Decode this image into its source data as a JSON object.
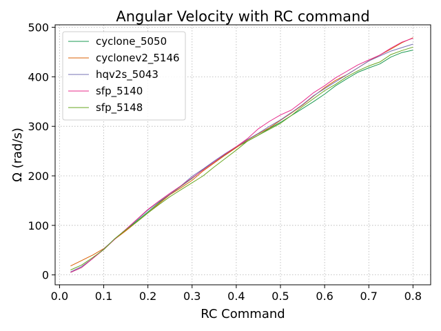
{
  "chart_data": {
    "type": "line",
    "title": "Angular Velocity with RC command",
    "xlabel": "RC Command",
    "ylabel": "Ω (rad/s)",
    "xlim": [
      -0.01,
      0.84
    ],
    "ylim": [
      -20,
      505
    ],
    "xticks": [
      0.0,
      0.1,
      0.2,
      0.3,
      0.4,
      0.5,
      0.6,
      0.7,
      0.8
    ],
    "xtick_labels": [
      "0.0",
      "0.1",
      "0.2",
      "0.3",
      "0.4",
      "0.5",
      "0.6",
      "0.7",
      "0.8"
    ],
    "yticks": [
      0,
      100,
      200,
      300,
      400,
      500
    ],
    "ytick_labels": [
      "0",
      "100",
      "200",
      "300",
      "400",
      "500"
    ],
    "grid": true,
    "legend_position": "top-left",
    "series": [
      {
        "name": "cyclone_5050",
        "color": "#1a9850",
        "x": [
          0.025,
          0.05,
          0.075,
          0.1,
          0.125,
          0.15,
          0.175,
          0.2,
          0.225,
          0.25,
          0.275,
          0.3,
          0.325,
          0.35,
          0.375,
          0.4,
          0.425,
          0.45,
          0.475,
          0.5,
          0.525,
          0.55,
          0.575,
          0.6,
          0.625,
          0.65,
          0.675,
          0.7,
          0.725,
          0.75,
          0.775,
          0.8
        ],
        "y": [
          5,
          15,
          33,
          52,
          73,
          91,
          109,
          127,
          146,
          163,
          179,
          195,
          213,
          228,
          243,
          258,
          270,
          282,
          296,
          308,
          322,
          336,
          350,
          365,
          382,
          396,
          409,
          418,
          426,
          440,
          449,
          454
        ]
      },
      {
        "name": "cyclonev2_5146",
        "color": "#d95f02",
        "x": [
          0.025,
          0.05,
          0.075,
          0.1,
          0.125,
          0.15,
          0.175,
          0.2,
          0.225,
          0.25,
          0.275,
          0.3,
          0.325,
          0.35,
          0.375,
          0.4,
          0.425,
          0.45,
          0.475,
          0.5,
          0.525,
          0.55,
          0.575,
          0.6,
          0.625,
          0.65,
          0.675,
          0.7,
          0.725,
          0.75,
          0.775,
          0.8
        ],
        "y": [
          18,
          29,
          40,
          53,
          72,
          89,
          107,
          125,
          144,
          162,
          176,
          191,
          210,
          226,
          242,
          257,
          272,
          285,
          297,
          312,
          327,
          343,
          361,
          378,
          393,
          404,
          418,
          432,
          444,
          456,
          469,
          479
        ]
      },
      {
        "name": "hqv2s_5043",
        "color": "#7570b3",
        "x": [
          0.025,
          0.05,
          0.075,
          0.1,
          0.125,
          0.15,
          0.175,
          0.2,
          0.225,
          0.25,
          0.275,
          0.3,
          0.325,
          0.35,
          0.375,
          0.4,
          0.425,
          0.45,
          0.475,
          0.5,
          0.525,
          0.55,
          0.575,
          0.6,
          0.625,
          0.65,
          0.675,
          0.7,
          0.725,
          0.75,
          0.775,
          0.8
        ],
        "y": [
          6,
          17,
          33,
          52,
          73,
          92,
          111,
          131,
          148,
          163,
          180,
          199,
          214,
          230,
          245,
          259,
          273,
          286,
          300,
          313,
          328,
          344,
          362,
          376,
          390,
          404,
          418,
          432,
          442,
          452,
          459,
          466
        ]
      },
      {
        "name": "sfp_5140",
        "color": "#e7298a",
        "x": [
          0.025,
          0.05,
          0.075,
          0.1,
          0.125,
          0.15,
          0.175,
          0.2,
          0.225,
          0.25,
          0.275,
          0.3,
          0.325,
          0.35,
          0.375,
          0.4,
          0.425,
          0.45,
          0.475,
          0.5,
          0.525,
          0.55,
          0.575,
          0.6,
          0.625,
          0.65,
          0.675,
          0.7,
          0.725,
          0.75,
          0.775,
          0.8
        ],
        "y": [
          5,
          15,
          33,
          51,
          72,
          92,
          112,
          132,
          149,
          165,
          180,
          196,
          212,
          228,
          244,
          259,
          275,
          295,
          310,
          323,
          333,
          350,
          368,
          382,
          398,
          411,
          424,
          434,
          444,
          458,
          470,
          478
        ]
      },
      {
        "name": "sfp_5148",
        "color": "#66a61e",
        "x": [
          0.025,
          0.05,
          0.075,
          0.1,
          0.125,
          0.15,
          0.175,
          0.2,
          0.225,
          0.25,
          0.275,
          0.3,
          0.325,
          0.35,
          0.375,
          0.4,
          0.425,
          0.45,
          0.475,
          0.5,
          0.525,
          0.55,
          0.575,
          0.6,
          0.625,
          0.65,
          0.675,
          0.7,
          0.725,
          0.75,
          0.775,
          0.8
        ],
        "y": [
          10,
          20,
          35,
          51,
          73,
          91,
          107,
          125,
          142,
          158,
          172,
          186,
          200,
          218,
          235,
          252,
          270,
          282,
          294,
          306,
          322,
          340,
          356,
          372,
          385,
          400,
          412,
          422,
          430,
          445,
          453,
          460
        ]
      }
    ]
  }
}
